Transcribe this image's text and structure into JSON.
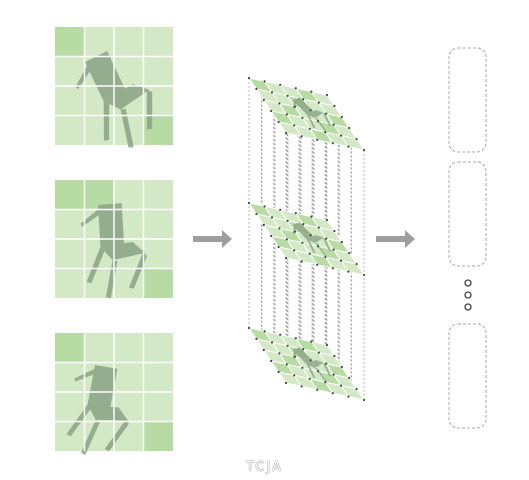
{
  "caption": "TCJA",
  "colors": {
    "tile_light": "#d3e9c6",
    "tile_dark": "#b7dca3",
    "grid_line": "#ffffff",
    "chair": "#8aa386",
    "arrow": "#9e9e9e",
    "dashed": "#9a9a9a",
    "slot_border": "#a8a8a8",
    "dot": "#444444"
  },
  "icons": {
    "chair": "chair-silhouette-icon",
    "arrow": "right-arrow-icon",
    "ellipsis": "vertical-ellipsis-icon"
  }
}
